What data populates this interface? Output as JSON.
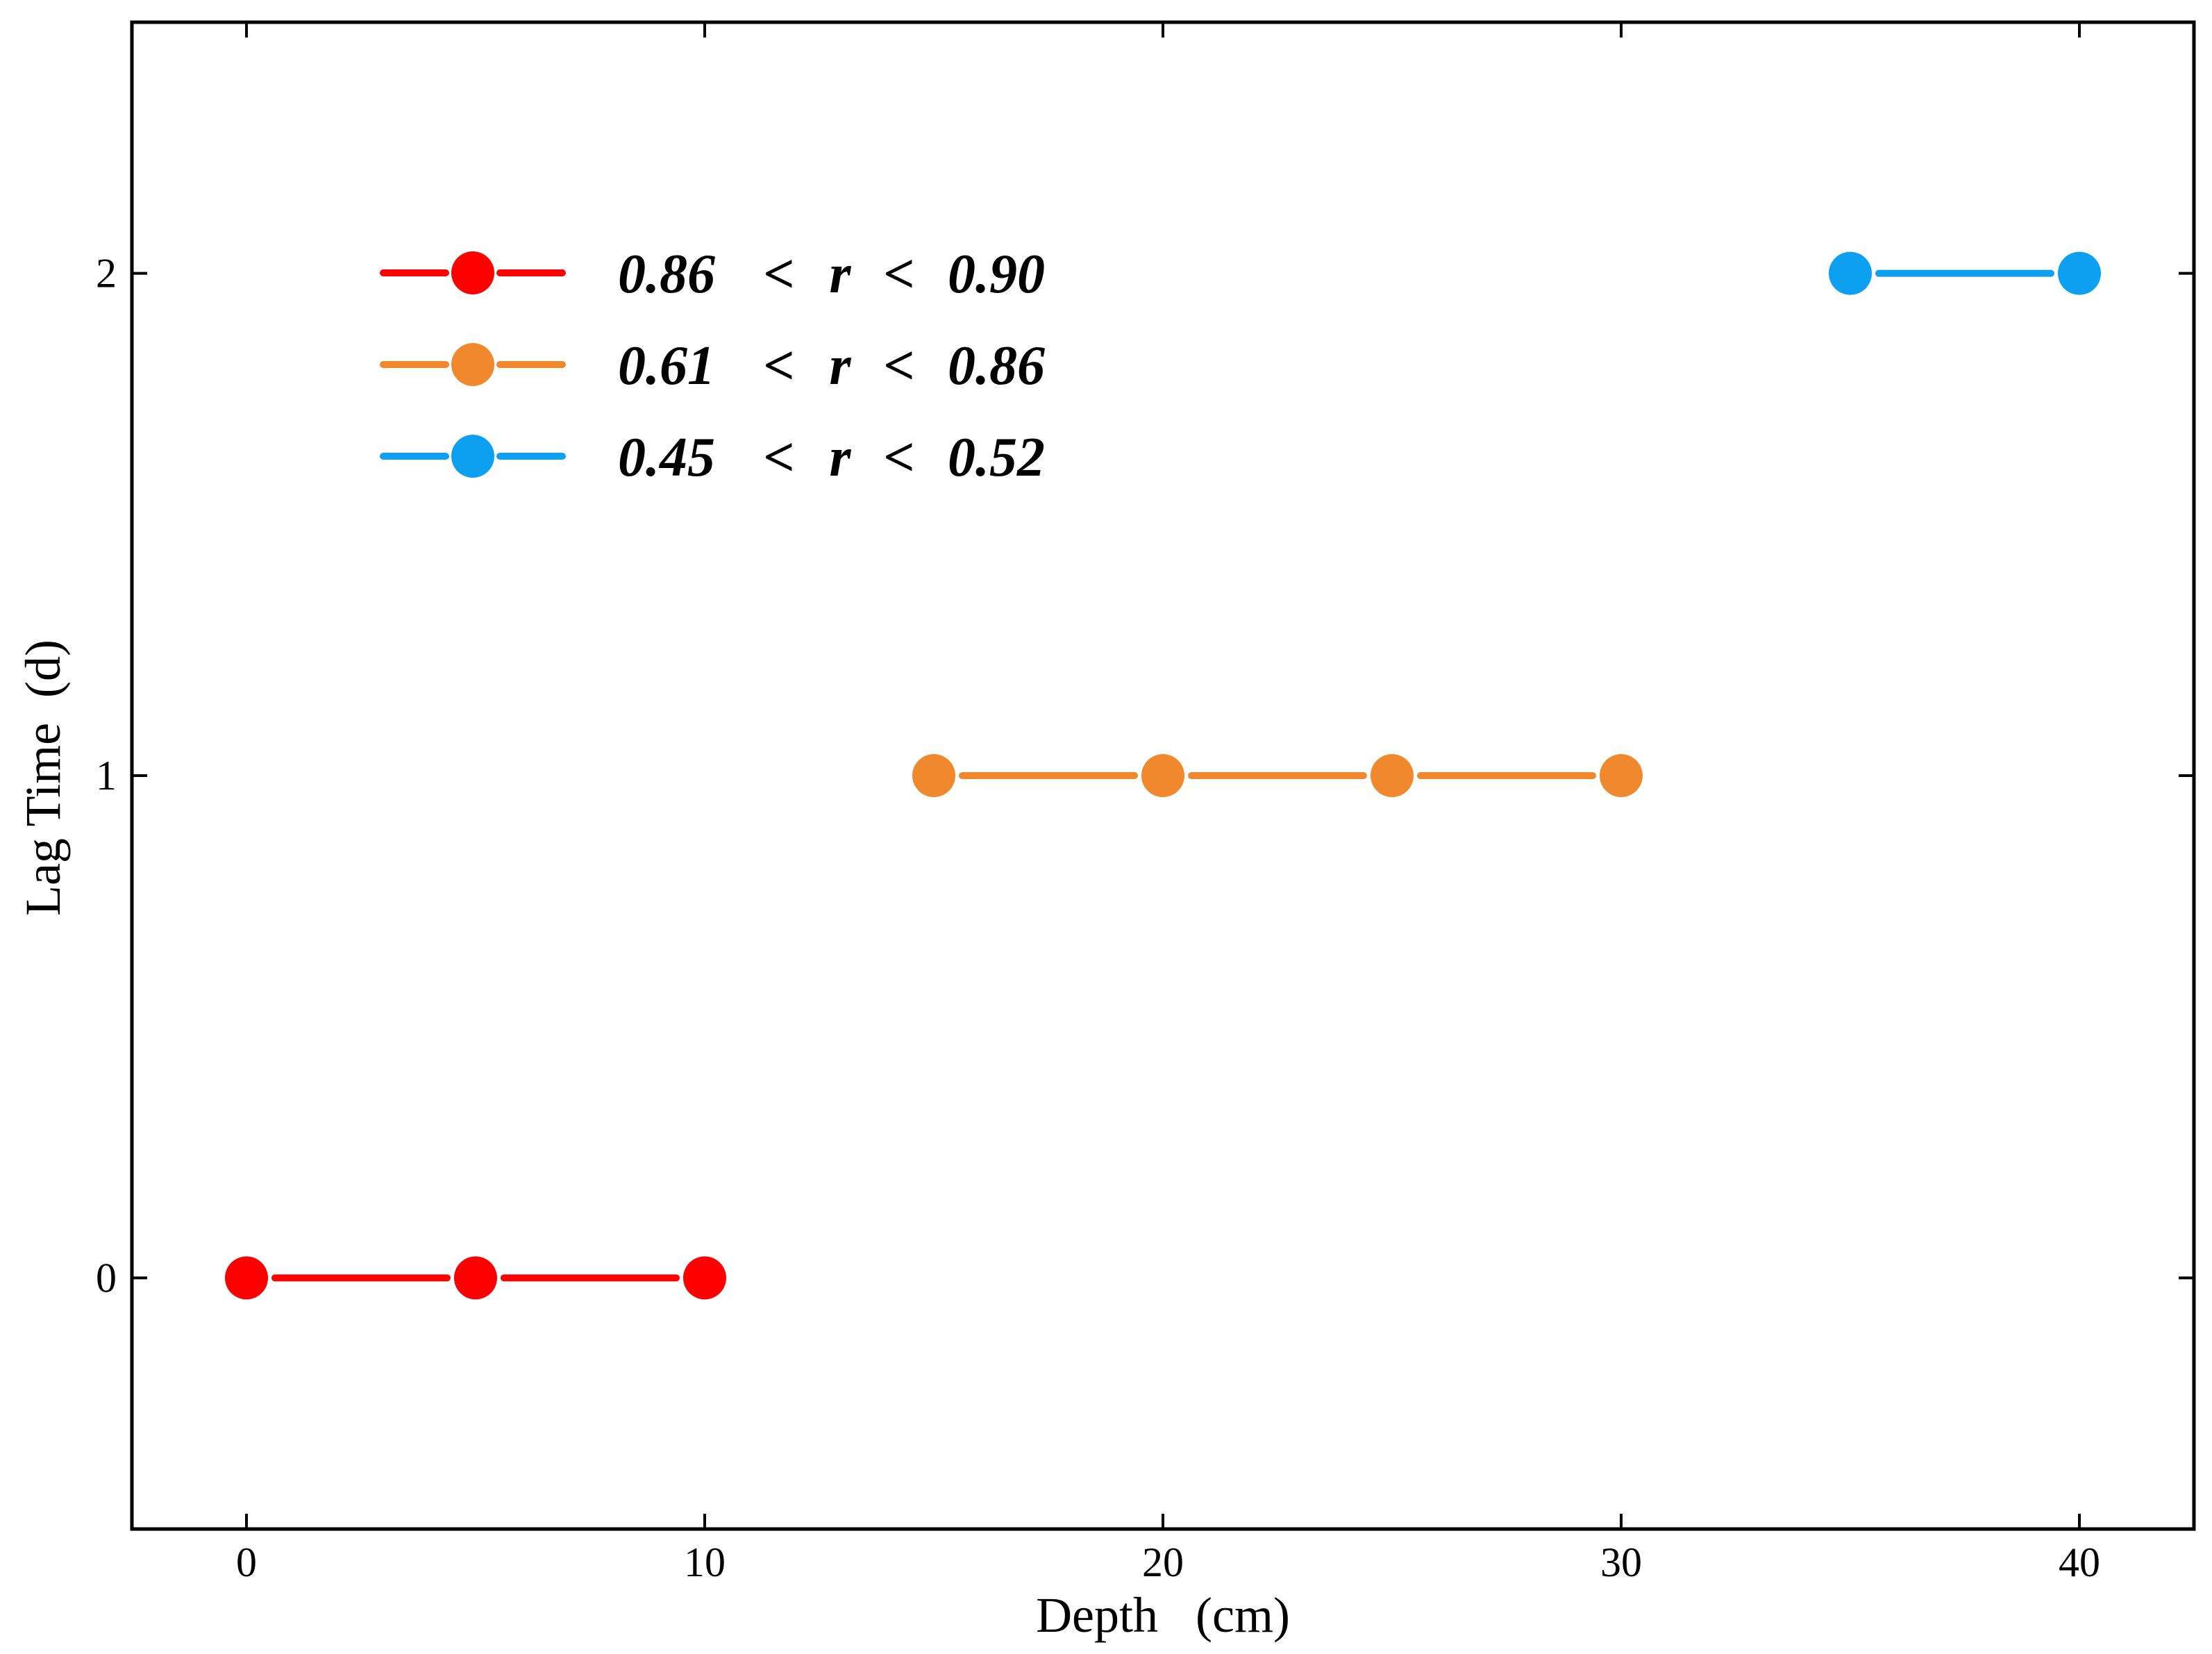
{
  "chart_data": {
    "type": "line",
    "title": "",
    "xlabel": "Depth   (cm)",
    "ylabel": "Lag Time  (d)",
    "xlim": [
      -2.5,
      42.5
    ],
    "ylim": [
      -0.5,
      2.5
    ],
    "xticks": [
      0,
      10,
      20,
      30,
      40
    ],
    "yticks": [
      0,
      1,
      2
    ],
    "grid": false,
    "legend_position": "top-left",
    "series": [
      {
        "name": "0.86 < r < 0.90",
        "legend": {
          "lo": "0.86",
          "op1": "<",
          "var": "r",
          "op2": "<",
          "hi": "0.90"
        },
        "color": "#ff0000",
        "x": [
          0,
          5,
          10
        ],
        "y": [
          0,
          0,
          0
        ]
      },
      {
        "name": "0.61 < r < 0.86",
        "legend": {
          "lo": "0.61",
          "op1": "<",
          "var": "r",
          "op2": "<",
          "hi": "0.86"
        },
        "color": "#f0882e",
        "x": [
          15,
          20,
          25,
          30
        ],
        "y": [
          1,
          1,
          1,
          1
        ]
      },
      {
        "name": "0.45 < r < 0.52",
        "legend": {
          "lo": "0.45",
          "op1": "<",
          "var": "r",
          "op2": "<",
          "hi": "0.52"
        },
        "color": "#0ea0f0",
        "x": [
          35,
          40
        ],
        "y": [
          2,
          2
        ]
      }
    ]
  }
}
